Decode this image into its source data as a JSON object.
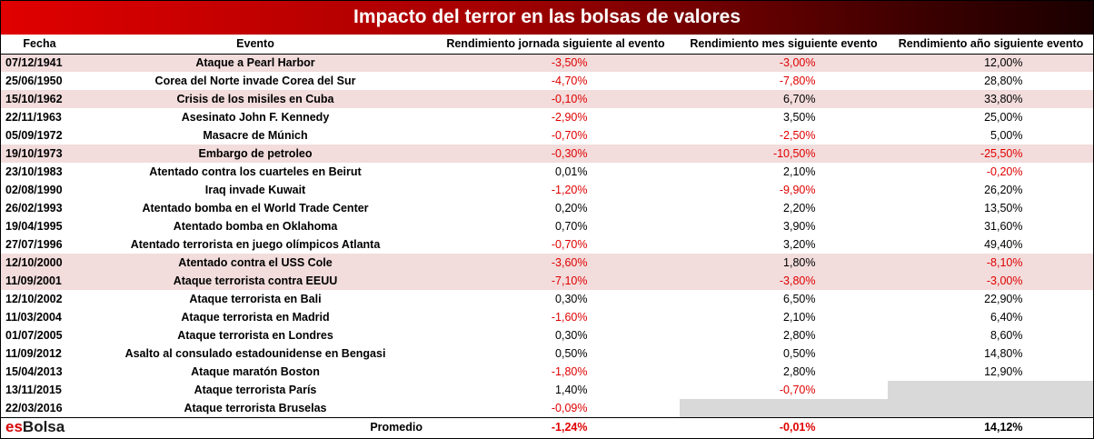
{
  "chart_data": {
    "type": "table",
    "title": "Impacto del terror en las bolsas de valores",
    "columns": [
      "Fecha",
      "Evento",
      "Rendimiento jornada siguiente al evento",
      "Rendimiento mes siguiente evento",
      "Rendimiento año siguiente evento"
    ],
    "rows": [
      {
        "fecha": "07/12/1941",
        "evento": "Ataque a Pearl Harbor",
        "dia": "-3,50%",
        "mes": "-3,00%",
        "anio": "12,00%",
        "shade": true
      },
      {
        "fecha": "25/06/1950",
        "evento": "Corea del Norte invade Corea del Sur",
        "dia": "-4,70%",
        "mes": "-7,80%",
        "anio": "28,80%",
        "shade": false
      },
      {
        "fecha": "15/10/1962",
        "evento": "Crisis de los misiles en Cuba",
        "dia": "-0,10%",
        "mes": "6,70%",
        "anio": "33,80%",
        "shade": true
      },
      {
        "fecha": "22/11/1963",
        "evento": "Asesinato John F. Kennedy",
        "dia": "-2,90%",
        "mes": "3,50%",
        "anio": "25,00%",
        "shade": false
      },
      {
        "fecha": "05/09/1972",
        "evento": "Masacre de Múnich",
        "dia": "-0,70%",
        "mes": "-2,50%",
        "anio": "5,00%",
        "shade": false
      },
      {
        "fecha": "19/10/1973",
        "evento": "Embargo de petroleo",
        "dia": "-0,30%",
        "mes": "-10,50%",
        "anio": "-25,50%",
        "shade": true
      },
      {
        "fecha": "23/10/1983",
        "evento": "Atentado contra los cuarteles en Beirut",
        "dia": "0,01%",
        "mes": "2,10%",
        "anio": "-0,20%",
        "shade": false
      },
      {
        "fecha": "02/08/1990",
        "evento": "Iraq invade Kuwait",
        "dia": "-1,20%",
        "mes": "-9,90%",
        "anio": "26,20%",
        "shade": false
      },
      {
        "fecha": "26/02/1993",
        "evento": "Atentado bomba en el World Trade Center",
        "dia": "0,20%",
        "mes": "2,20%",
        "anio": "13,50%",
        "shade": false
      },
      {
        "fecha": "19/04/1995",
        "evento": "Atentado bomba en Oklahoma",
        "dia": "0,70%",
        "mes": "3,90%",
        "anio": "31,60%",
        "shade": false
      },
      {
        "fecha": "27/07/1996",
        "evento": "Atentado terrorista en juego olímpicos Atlanta",
        "dia": "-0,70%",
        "mes": "3,20%",
        "anio": "49,40%",
        "shade": false
      },
      {
        "fecha": "12/10/2000",
        "evento": "Atentado contra el USS Cole",
        "dia": "-3,60%",
        "mes": "1,80%",
        "anio": "-8,10%",
        "shade": true
      },
      {
        "fecha": "11/09/2001",
        "evento": "Ataque terrorista contra EEUU",
        "dia": "-7,10%",
        "mes": "-3,80%",
        "anio": "-3,00%",
        "shade": true
      },
      {
        "fecha": "12/10/2002",
        "evento": "Ataque terrorista en Bali",
        "dia": "0,30%",
        "mes": "6,50%",
        "anio": "22,90%",
        "shade": false
      },
      {
        "fecha": "11/03/2004",
        "evento": "Ataque terrorista en Madrid",
        "dia": "-1,60%",
        "mes": "2,10%",
        "anio": "6,40%",
        "shade": false
      },
      {
        "fecha": "01/07/2005",
        "evento": "Ataque terrorista en Londres",
        "dia": "0,30%",
        "mes": "2,80%",
        "anio": "8,60%",
        "shade": false
      },
      {
        "fecha": "11/09/2012",
        "evento": "Asalto al consulado estadounidense en Bengasi",
        "dia": "0,50%",
        "mes": "0,50%",
        "anio": "14,80%",
        "shade": false
      },
      {
        "fecha": "15/04/2013",
        "evento": "Ataque maratón Boston",
        "dia": "-1,80%",
        "mes": "2,80%",
        "anio": "12,90%",
        "shade": false
      },
      {
        "fecha": "13/11/2015",
        "evento": "Ataque terrorista París",
        "dia": "1,40%",
        "mes": "-0,70%",
        "anio": "",
        "shade": false
      },
      {
        "fecha": "22/03/2016",
        "evento": "Ataque terrorista Bruselas",
        "dia": "-0,09%",
        "mes": "",
        "anio": "",
        "shade": false
      }
    ],
    "footer": {
      "label": "Promedio",
      "dia": "-1,24%",
      "mes": "-0,01%",
      "anio": "14,12%"
    }
  },
  "branding": {
    "logo_part1": "es",
    "logo_part2": "Bolsa"
  },
  "colors": {
    "negative": "#e00000",
    "highlight_row": "#f2dcdc",
    "empty_cell": "#d9d9d9"
  }
}
